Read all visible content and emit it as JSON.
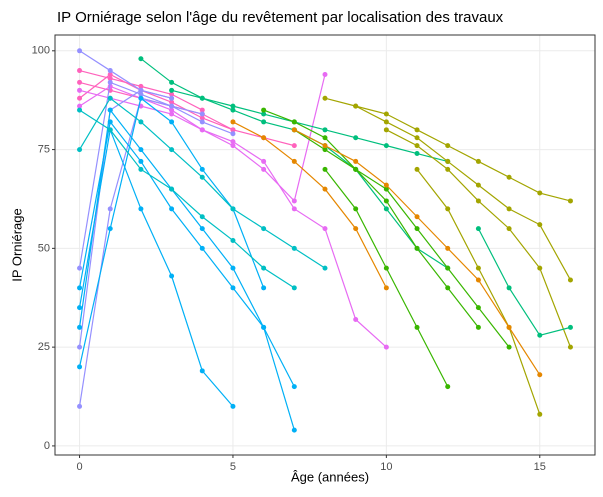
{
  "chart_data": {
    "type": "line",
    "title": "IP Orniérage selon l'âge du revêtement par localisation des travaux",
    "x_label": "Âge (années)",
    "y_label": "IP Orniérage",
    "xlim": [
      -0.8,
      16.8
    ],
    "ylim": [
      -2.3,
      104
    ],
    "xticks": [
      0,
      5,
      10,
      15
    ],
    "yticks": [
      0,
      25,
      50,
      75,
      100
    ],
    "grid": true,
    "series": [
      {
        "color": "#FF62BC",
        "x": [
          0,
          1,
          2,
          3,
          4,
          5
        ],
        "values": [
          92,
          90,
          88,
          86,
          84,
          80
        ]
      },
      {
        "color": "#FF62BC",
        "x": [
          0,
          1,
          2,
          3,
          4
        ],
        "values": [
          95,
          93,
          91,
          89,
          85
        ]
      },
      {
        "color": "#FF62BC",
        "x": [
          0,
          1,
          2,
          3,
          4,
          5,
          6,
          7
        ],
        "values": [
          88,
          94,
          90,
          87,
          83,
          80,
          78,
          76
        ]
      },
      {
        "color": "#E76BF3",
        "x": [
          0,
          1,
          2,
          3,
          4,
          5,
          6,
          7,
          8
        ],
        "values": [
          90,
          88,
          86,
          84,
          80,
          76,
          70,
          62,
          94
        ]
      },
      {
        "color": "#E76BF3",
        "x": [
          0,
          1,
          2,
          3,
          4,
          5,
          6,
          7,
          8,
          9,
          10
        ],
        "values": [
          86,
          91,
          88,
          85,
          80,
          77,
          72,
          60,
          55,
          32,
          25
        ]
      },
      {
        "color": "#9590FF",
        "x": [
          0,
          1,
          2,
          3
        ],
        "values": [
          25,
          85,
          90,
          88
        ]
      },
      {
        "color": "#9590FF",
        "x": [
          0,
          1,
          2,
          3,
          4
        ],
        "values": [
          10,
          60,
          88,
          86,
          84
        ]
      },
      {
        "color": "#9590FF",
        "x": [
          0,
          1,
          2,
          3,
          4,
          5
        ],
        "values": [
          45,
          92,
          89,
          86,
          82,
          79
        ]
      },
      {
        "color": "#9590FF",
        "x": [
          0,
          1,
          2,
          3
        ],
        "values": [
          100,
          95,
          90,
          88
        ]
      },
      {
        "color": "#00B0F6",
        "x": [
          0,
          1,
          2,
          3,
          4,
          5,
          6,
          7
        ],
        "values": [
          30,
          85,
          75,
          65,
          55,
          45,
          30,
          15
        ]
      },
      {
        "color": "#00B0F6",
        "x": [
          0,
          1,
          2,
          3,
          4,
          5,
          6
        ],
        "values": [
          20,
          55,
          88,
          82,
          70,
          60,
          40
        ]
      },
      {
        "color": "#00B0F6",
        "x": [
          0,
          1,
          2,
          3,
          4,
          5,
          6,
          7
        ],
        "values": [
          40,
          82,
          72,
          60,
          50,
          40,
          30,
          4
        ]
      },
      {
        "color": "#00B0F6",
        "x": [
          0,
          1,
          2,
          3,
          4,
          5
        ],
        "values": [
          35,
          80,
          60,
          43,
          19,
          10
        ]
      },
      {
        "color": "#00BFC4",
        "x": [
          0,
          1,
          2,
          3,
          4,
          5,
          6,
          7
        ],
        "values": [
          85,
          80,
          70,
          65,
          58,
          52,
          45,
          40
        ]
      },
      {
        "color": "#00BFC4",
        "x": [
          0,
          1,
          2,
          3,
          4,
          5,
          6,
          7,
          8
        ],
        "values": [
          75,
          88,
          82,
          75,
          68,
          60,
          55,
          50,
          45
        ]
      },
      {
        "color": "#00BF7D",
        "x": [
          2,
          3,
          4,
          5,
          6,
          7,
          8,
          9,
          10,
          11,
          12
        ],
        "values": [
          98,
          92,
          88,
          85,
          82,
          80,
          76,
          70,
          60,
          50,
          45
        ]
      },
      {
        "color": "#00BF7D",
        "x": [
          3,
          4,
          5,
          6,
          7,
          8,
          9,
          10,
          11,
          12
        ],
        "values": [
          90,
          88,
          86,
          84,
          82,
          80,
          78,
          76,
          74,
          72
        ]
      },
      {
        "color": "#39B600",
        "x": [
          6,
          7,
          8,
          9,
          10,
          11,
          12,
          13
        ],
        "values": [
          85,
          82,
          78,
          70,
          62,
          50,
          40,
          30
        ]
      },
      {
        "color": "#39B600",
        "x": [
          7,
          8,
          9,
          10,
          11,
          12,
          13,
          14
        ],
        "values": [
          80,
          75,
          70,
          65,
          55,
          45,
          35,
          25
        ]
      },
      {
        "color": "#39B600",
        "x": [
          8,
          9,
          10,
          11,
          12
        ],
        "values": [
          70,
          60,
          45,
          30,
          15
        ]
      },
      {
        "color": "#A3A500",
        "x": [
          8,
          9,
          10,
          11,
          12,
          13,
          14,
          15,
          16
        ],
        "values": [
          88,
          86,
          84,
          80,
          76,
          72,
          68,
          64,
          62
        ]
      },
      {
        "color": "#A3A500",
        "x": [
          9,
          10,
          11,
          12,
          13,
          14,
          15,
          16
        ],
        "values": [
          86,
          82,
          78,
          72,
          66,
          60,
          56,
          42
        ]
      },
      {
        "color": "#A3A500",
        "x": [
          10,
          11,
          12,
          13,
          14,
          15,
          16
        ],
        "values": [
          80,
          76,
          70,
          62,
          55,
          45,
          25
        ]
      },
      {
        "color": "#A3A500",
        "x": [
          11,
          12,
          13,
          14,
          15
        ],
        "values": [
          70,
          60,
          45,
          30,
          8
        ]
      },
      {
        "color": "#E58700",
        "x": [
          7,
          8,
          9,
          10,
          11,
          12,
          13,
          14,
          15
        ],
        "values": [
          80,
          76,
          72,
          66,
          58,
          50,
          42,
          30,
          18
        ]
      },
      {
        "color": "#E58700",
        "x": [
          5,
          6,
          7,
          8,
          9,
          10
        ],
        "values": [
          82,
          78,
          72,
          65,
          55,
          40
        ]
      },
      {
        "color": "#00BF7D",
        "x": [
          13,
          14,
          15,
          16
        ],
        "values": [
          55,
          40,
          28,
          30
        ]
      }
    ]
  }
}
